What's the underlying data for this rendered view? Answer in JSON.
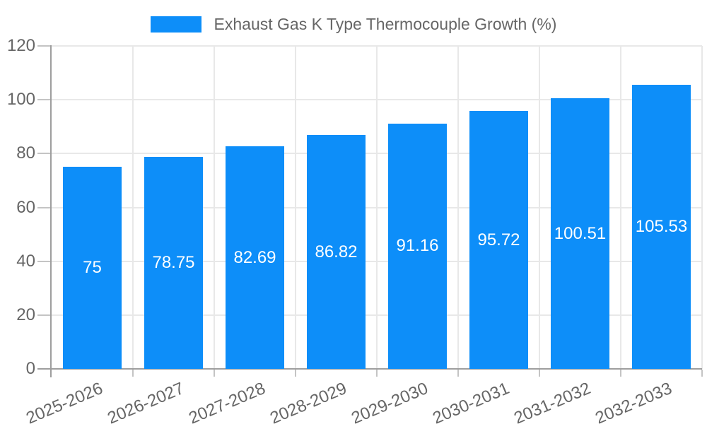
{
  "chart_data": {
    "type": "bar",
    "title": "Exhaust Gas K Type Thermocouple Growth (%)",
    "categories": [
      "2025-2026",
      "2026-2027",
      "2027-2028",
      "2028-2029",
      "2029-2030",
      "2030-2031",
      "2031-2032",
      "2032-2033"
    ],
    "series": [
      {
        "name": "Exhaust Gas K Type Thermocouple Growth (%)",
        "values": [
          75,
          78.75,
          82.69,
          86.82,
          91.16,
          95.72,
          100.51,
          105.53
        ]
      }
    ],
    "bar_value_labels": [
      "75",
      "78.75",
      "82.69",
      "86.82",
      "91.16",
      "95.72",
      "100.51",
      "105.53"
    ],
    "xlabel": "",
    "ylabel": "",
    "ylim": [
      0,
      120
    ],
    "yticks": [
      0,
      20,
      40,
      60,
      80,
      100,
      120
    ],
    "grid": true,
    "legend_position": "top",
    "bar_label_position": "center",
    "x_label_rotation_deg": -23,
    "colors": {
      "bar": "#0d8ef9",
      "grid": "#e8e8e8",
      "tick": "#c4c4c4",
      "axis": "#9e9e9e",
      "text": "#666666",
      "bar_label": "#ffffff",
      "background": "#ffffff"
    }
  }
}
